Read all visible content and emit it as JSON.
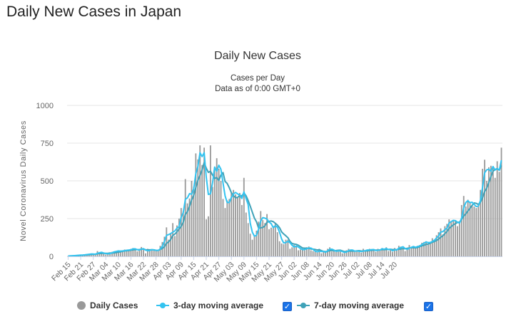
{
  "page": {
    "heading": "Daily New Cases in Japan"
  },
  "legend": {
    "items": [
      {
        "label": "Daily Cases",
        "color": "#999999"
      },
      {
        "label": "3-day moving average",
        "color": "#33c3f0"
      },
      {
        "label": "7-day moving average",
        "color": "#3fa2b8"
      }
    ],
    "checkbox_mark": "✓"
  },
  "chart_data": {
    "type": "bar",
    "title": "Daily New Cases",
    "subtitle": [
      "Cases per Day",
      "Data as of 0:00 GMT+0"
    ],
    "ylabel": "Novel Coronavirus Daily Cases",
    "xlabel": "",
    "ylim": [
      0,
      1000
    ],
    "yticks": [
      0,
      250,
      500,
      750,
      1000
    ],
    "grid": true,
    "legend_position": "bottom",
    "xtick_labels": [
      "Feb 15",
      "Feb 21",
      "Feb 27",
      "Mar 04",
      "Mar 10",
      "Mar 16",
      "Mar 22",
      "Mar 28",
      "Apr 03",
      "Apr 09",
      "Apr 15",
      "Apr 21",
      "Apr 27",
      "May 03",
      "May 09",
      "May 15",
      "May 21",
      "May 27",
      "Jun 02",
      "Jun 08",
      "Jun 14",
      "Jun 20",
      "Jun 26",
      "Jul 02",
      "Jul 08",
      "Jul 14",
      "Jul 20"
    ],
    "colors": {
      "bars": "#999999",
      "ma3": "#33c3f0",
      "ma7": "#3fa2b8"
    },
    "series": [
      {
        "name": "Daily Cases",
        "values": [
          2,
          4,
          5,
          6,
          7,
          8,
          9,
          10,
          12,
          14,
          15,
          18,
          13,
          12,
          35,
          25,
          20,
          22,
          12,
          16,
          26,
          30,
          33,
          35,
          40,
          30,
          38,
          45,
          38,
          42,
          50,
          55,
          45,
          33,
          48,
          62,
          42,
          20,
          50,
          45,
          38,
          43,
          40,
          35,
          70,
          95,
          130,
          192,
          110,
          150,
          220,
          135,
          205,
          250,
          320,
          300,
          512,
          351,
          383,
          500,
          460,
          682,
          642,
          735,
          605,
          720,
          245,
          265,
          735,
          460,
          580,
          650,
          580,
          500,
          380,
          320,
          370,
          380,
          420,
          440,
          410,
          390,
          420,
          340,
          520,
          290,
          220,
          150,
          110,
          140,
          170,
          230,
          300,
          240,
          220,
          280,
          180,
          190,
          200,
          220,
          160,
          100,
          85,
          80,
          110,
          110,
          50,
          60,
          75,
          70,
          40,
          45,
          50,
          40,
          60,
          65,
          40,
          35,
          30,
          25,
          50,
          20,
          30,
          30,
          50,
          60,
          32,
          33,
          35,
          40,
          35,
          20,
          25,
          40,
          50,
          35,
          38,
          30,
          40,
          30,
          25,
          50,
          38,
          38,
          50,
          45,
          40,
          30,
          50,
          45,
          55,
          40,
          60,
          35,
          45,
          30,
          55,
          40,
          70,
          65,
          55,
          35,
          50,
          75,
          55,
          65,
          60,
          70,
          75,
          90,
          95,
          100,
          80,
          95,
          120,
          105,
          140,
          160,
          185,
          145,
          200,
          215,
          245,
          230,
          240,
          240,
          200,
          220,
          340,
          400,
          330,
          375,
          360,
          340,
          330,
          320,
          350,
          440,
          580,
          640,
          500,
          590,
          600,
          595,
          520,
          630,
          560,
          720
        ]
      }
    ]
  }
}
